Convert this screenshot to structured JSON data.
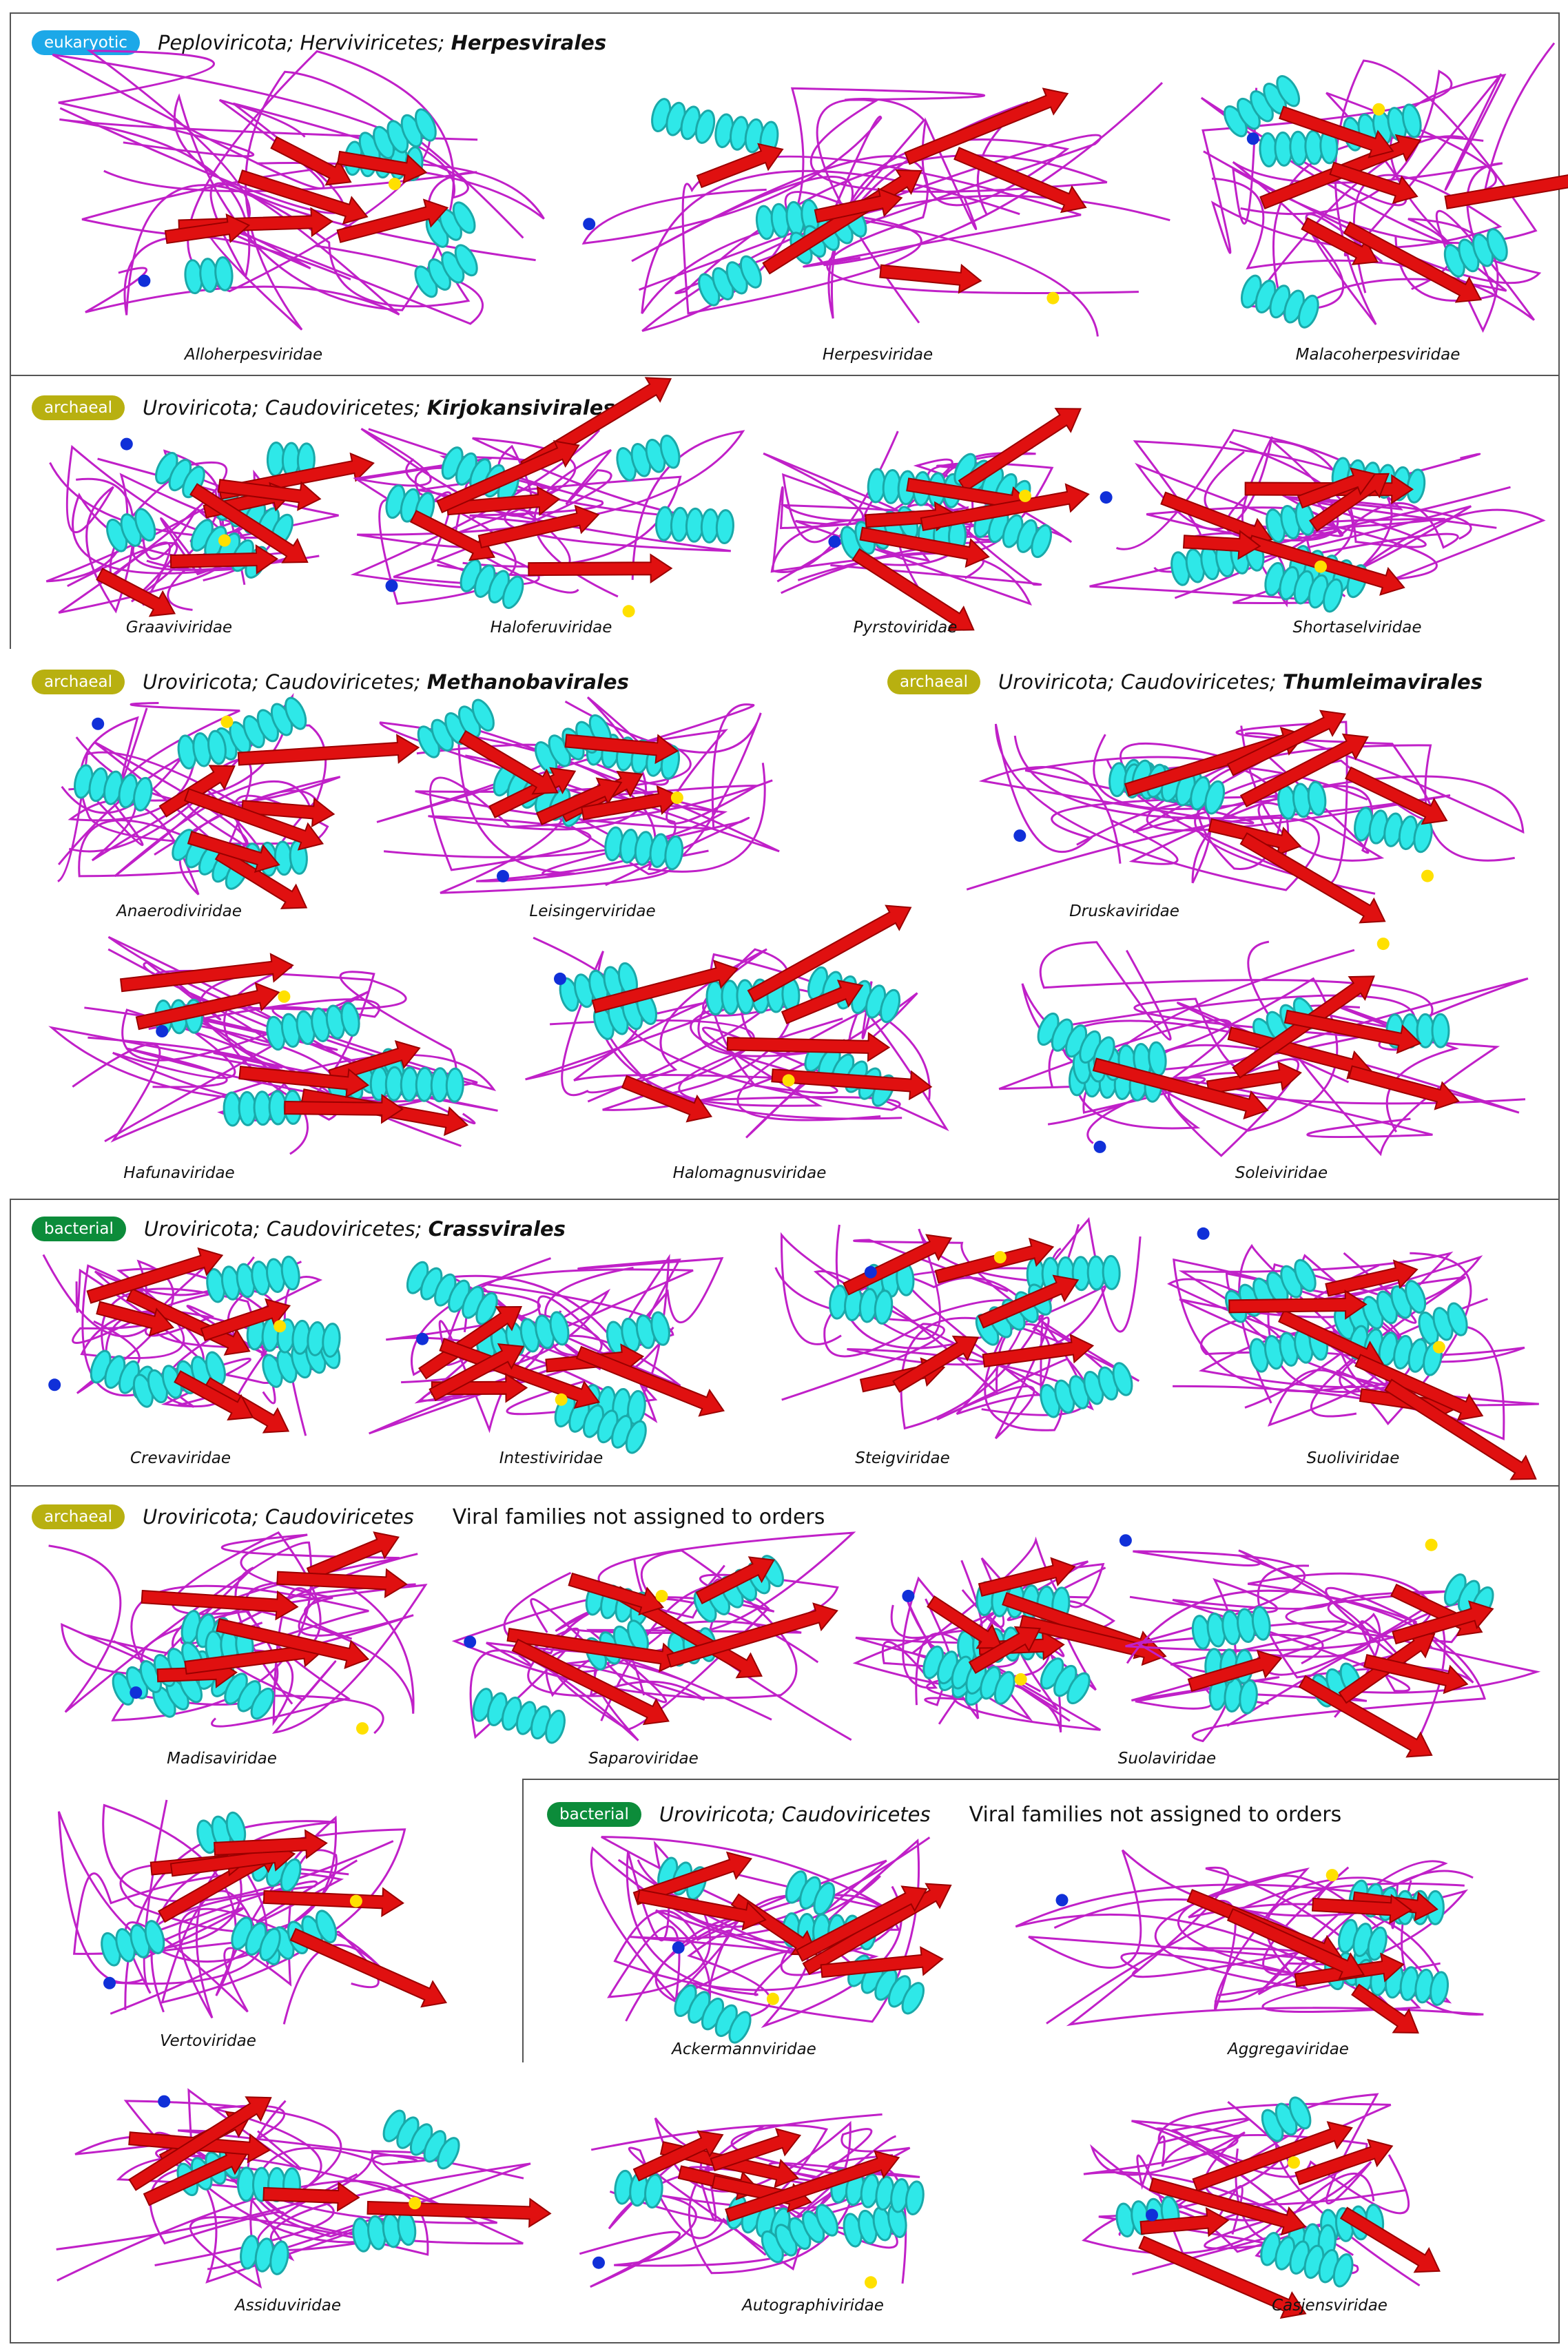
{
  "colors": {
    "helix": "#2ee8e8",
    "helix_dark": "#1aa9a9",
    "sheet": "#e01010",
    "sheet_dark": "#9a0000",
    "coil": "#c020c8",
    "n_terminus": "#1030d8",
    "c_terminus": "#ffe000",
    "eukaryotic": "#1ca8e8",
    "archaeal": "#b8b010",
    "bacterial": "#0c8c3a"
  },
  "badges": {
    "eukaryotic": "eukaryotic",
    "archaeal": "archaeal",
    "bacterial": "bacterial"
  },
  "sections": {
    "herpes": {
      "phylum_class": "Peploviricota; Herviviricetes; ",
      "order": "Herpesvirales",
      "families": [
        "Alloherpesviridae",
        "Herpesviridae",
        "Malacoherpesviridae"
      ]
    },
    "kirjo": {
      "phylum_class": "Uroviricota; Caudoviricetes; ",
      "order": "Kirjokansivirales",
      "families": [
        "Graaviviridae",
        "Haloferuviridae",
        "Pyrstoviridae",
        "Shortaselviridae"
      ]
    },
    "methano": {
      "phylum_class": "Uroviricota; Caudoviricetes; ",
      "order": "Methanobavirales",
      "families": [
        "Anaerodiviridae",
        "Leisingerviridae"
      ]
    },
    "thumlei": {
      "phylum_class": "Uroviricota; Caudoviricetes; ",
      "order": "Thumleimavirales",
      "families": [
        "Druskaviridae",
        "Hafunaviridae",
        "Halomagnusviridae",
        "Soleiviridae"
      ]
    },
    "crass": {
      "phylum_class": "Uroviricota; Caudoviricetes; ",
      "order": "Crassvirales",
      "families": [
        "Crevaviridae",
        "Intestiviridae",
        "Steigviridae",
        "Suoliviridae"
      ]
    },
    "unassigned_arch": {
      "phylum_class": "Uroviricota; Caudoviricetes",
      "note": "Viral families not assigned to orders",
      "families": [
        "Madisaviridae",
        "Saparoviridae",
        "Suolaviridae",
        "Vertoviridae"
      ]
    },
    "unassigned_bact": {
      "phylum_class": "Uroviricota; Caudoviricetes",
      "note": "Viral families not assigned to orders",
      "families": [
        "Ackermannviridae",
        "Aggregaviridae",
        "Assiduviridae",
        "Autographiviridae",
        "Casjensviridae"
      ]
    }
  }
}
